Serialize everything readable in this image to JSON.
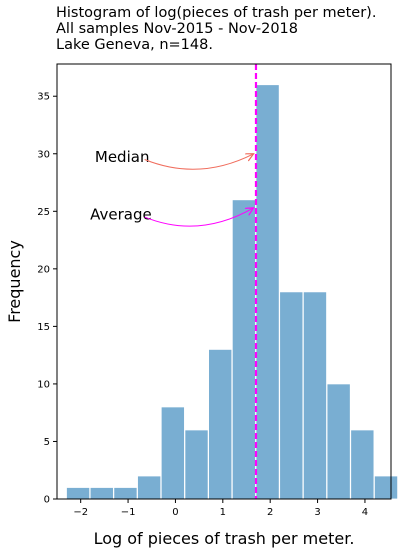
{
  "chart_data": {
    "type": "bar",
    "title_lines": [
      " Histogram of log(pieces of trash per meter).",
      "All samples Nov-2015 - Nov-2018",
      "Lake Geneva, n=148."
    ],
    "xlabel": "Log of pieces of trash per meter.",
    "ylabel": "Frequency",
    "xlim": [
      -2.5,
      4.55
    ],
    "ylim": [
      0,
      37.8
    ],
    "xticks": [
      -2,
      -1,
      0,
      1,
      2,
      3,
      4
    ],
    "xtick_labels": [
      "−2",
      "−1",
      "0",
      "1",
      "2",
      "3",
      "4"
    ],
    "yticks": [
      0,
      5,
      10,
      15,
      20,
      25,
      30,
      35
    ],
    "ytick_labels": [
      "0",
      "5",
      "10",
      "15",
      "20",
      "25",
      "30",
      "35"
    ],
    "bin_edges": [
      -2.3,
      -1.8,
      -1.3,
      -0.8,
      -0.3,
      0.2,
      0.7,
      1.2,
      1.7,
      2.2,
      2.7,
      3.2,
      3.7,
      4.2
    ],
    "bin_width": 0.49,
    "counts": [
      1,
      1,
      1,
      2,
      8,
      6,
      13,
      26,
      36,
      18,
      18,
      10,
      6,
      2
    ],
    "bar_color": "#79aed2",
    "median_line": {
      "x": 1.7,
      "color": "#ff00ff"
    },
    "annotations": [
      {
        "text": "Median",
        "text_x": -1.7,
        "text_y": 29.3,
        "arrow_from": [
          -0.65,
          29.5
        ],
        "arrow_to": [
          1.65,
          30
        ],
        "color": "#f06c5c"
      },
      {
        "text": "Average",
        "text_x": -1.8,
        "text_y": 24.3,
        "arrow_from": [
          -0.65,
          24.5
        ],
        "arrow_to": [
          1.65,
          25.3
        ],
        "color": "#ff00ff"
      }
    ],
    "grid": false,
    "legend": "none"
  }
}
